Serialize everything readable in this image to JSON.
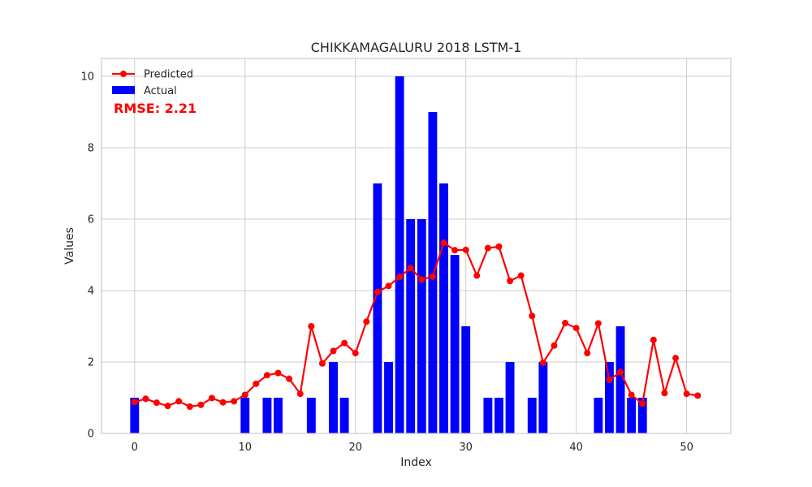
{
  "chart_data": {
    "type": "bar",
    "title": "CHIKKAMAGALURU 2018 LSTM-1",
    "xlabel": "Index",
    "ylabel": "Values",
    "xlim": [
      -3,
      54
    ],
    "ylim": [
      0,
      10.5
    ],
    "xticks": [
      0,
      10,
      20,
      30,
      40,
      50
    ],
    "yticks": [
      0,
      2,
      4,
      6,
      8,
      10
    ],
    "grid": true,
    "legend_position": "top-left",
    "annotation": "RMSE: 2.21",
    "series": [
      {
        "name": "Predicted",
        "type": "line",
        "color": "#ff0000",
        "x": [
          0,
          1,
          2,
          3,
          4,
          5,
          6,
          7,
          8,
          9,
          10,
          11,
          12,
          13,
          14,
          15,
          16,
          17,
          18,
          19,
          20,
          21,
          22,
          23,
          24,
          25,
          26,
          27,
          28,
          29,
          30,
          31,
          32,
          33,
          34,
          35,
          36,
          37,
          38,
          39,
          40,
          41,
          42,
          43,
          44,
          45,
          46,
          47,
          48,
          49,
          50,
          51
        ],
        "values": [
          0.88,
          0.97,
          0.86,
          0.77,
          0.9,
          0.75,
          0.8,
          0.99,
          0.87,
          0.9,
          1.08,
          1.39,
          1.63,
          1.69,
          1.53,
          1.11,
          3.0,
          1.96,
          2.31,
          2.53,
          2.25,
          3.13,
          3.96,
          4.13,
          4.38,
          4.63,
          4.31,
          4.39,
          5.34,
          5.13,
          5.14,
          4.42,
          5.19,
          5.23,
          4.27,
          4.42,
          3.29,
          1.98,
          2.46,
          3.09,
          2.95,
          2.25,
          3.08,
          1.5,
          1.72,
          1.08,
          0.83,
          2.62,
          1.13,
          2.11,
          1.11,
          1.06
        ]
      },
      {
        "name": "Actual",
        "type": "bar",
        "color": "#0000ff",
        "x": [
          0,
          1,
          2,
          3,
          4,
          5,
          6,
          7,
          8,
          9,
          10,
          11,
          12,
          13,
          14,
          15,
          16,
          17,
          18,
          19,
          20,
          21,
          22,
          23,
          24,
          25,
          26,
          27,
          28,
          29,
          30,
          31,
          32,
          33,
          34,
          35,
          36,
          37,
          38,
          39,
          40,
          41,
          42,
          43,
          44,
          45,
          46
        ],
        "values": [
          1,
          0,
          0,
          0,
          0,
          0,
          0,
          0,
          0,
          0,
          1,
          0,
          1,
          1,
          0,
          0,
          1,
          0,
          2,
          1,
          0,
          0,
          7,
          2,
          10,
          6,
          6,
          9,
          7,
          5,
          3,
          0,
          1,
          1,
          2,
          0,
          1,
          2,
          0,
          0,
          0,
          0,
          1,
          2,
          3,
          1,
          1
        ]
      }
    ]
  }
}
